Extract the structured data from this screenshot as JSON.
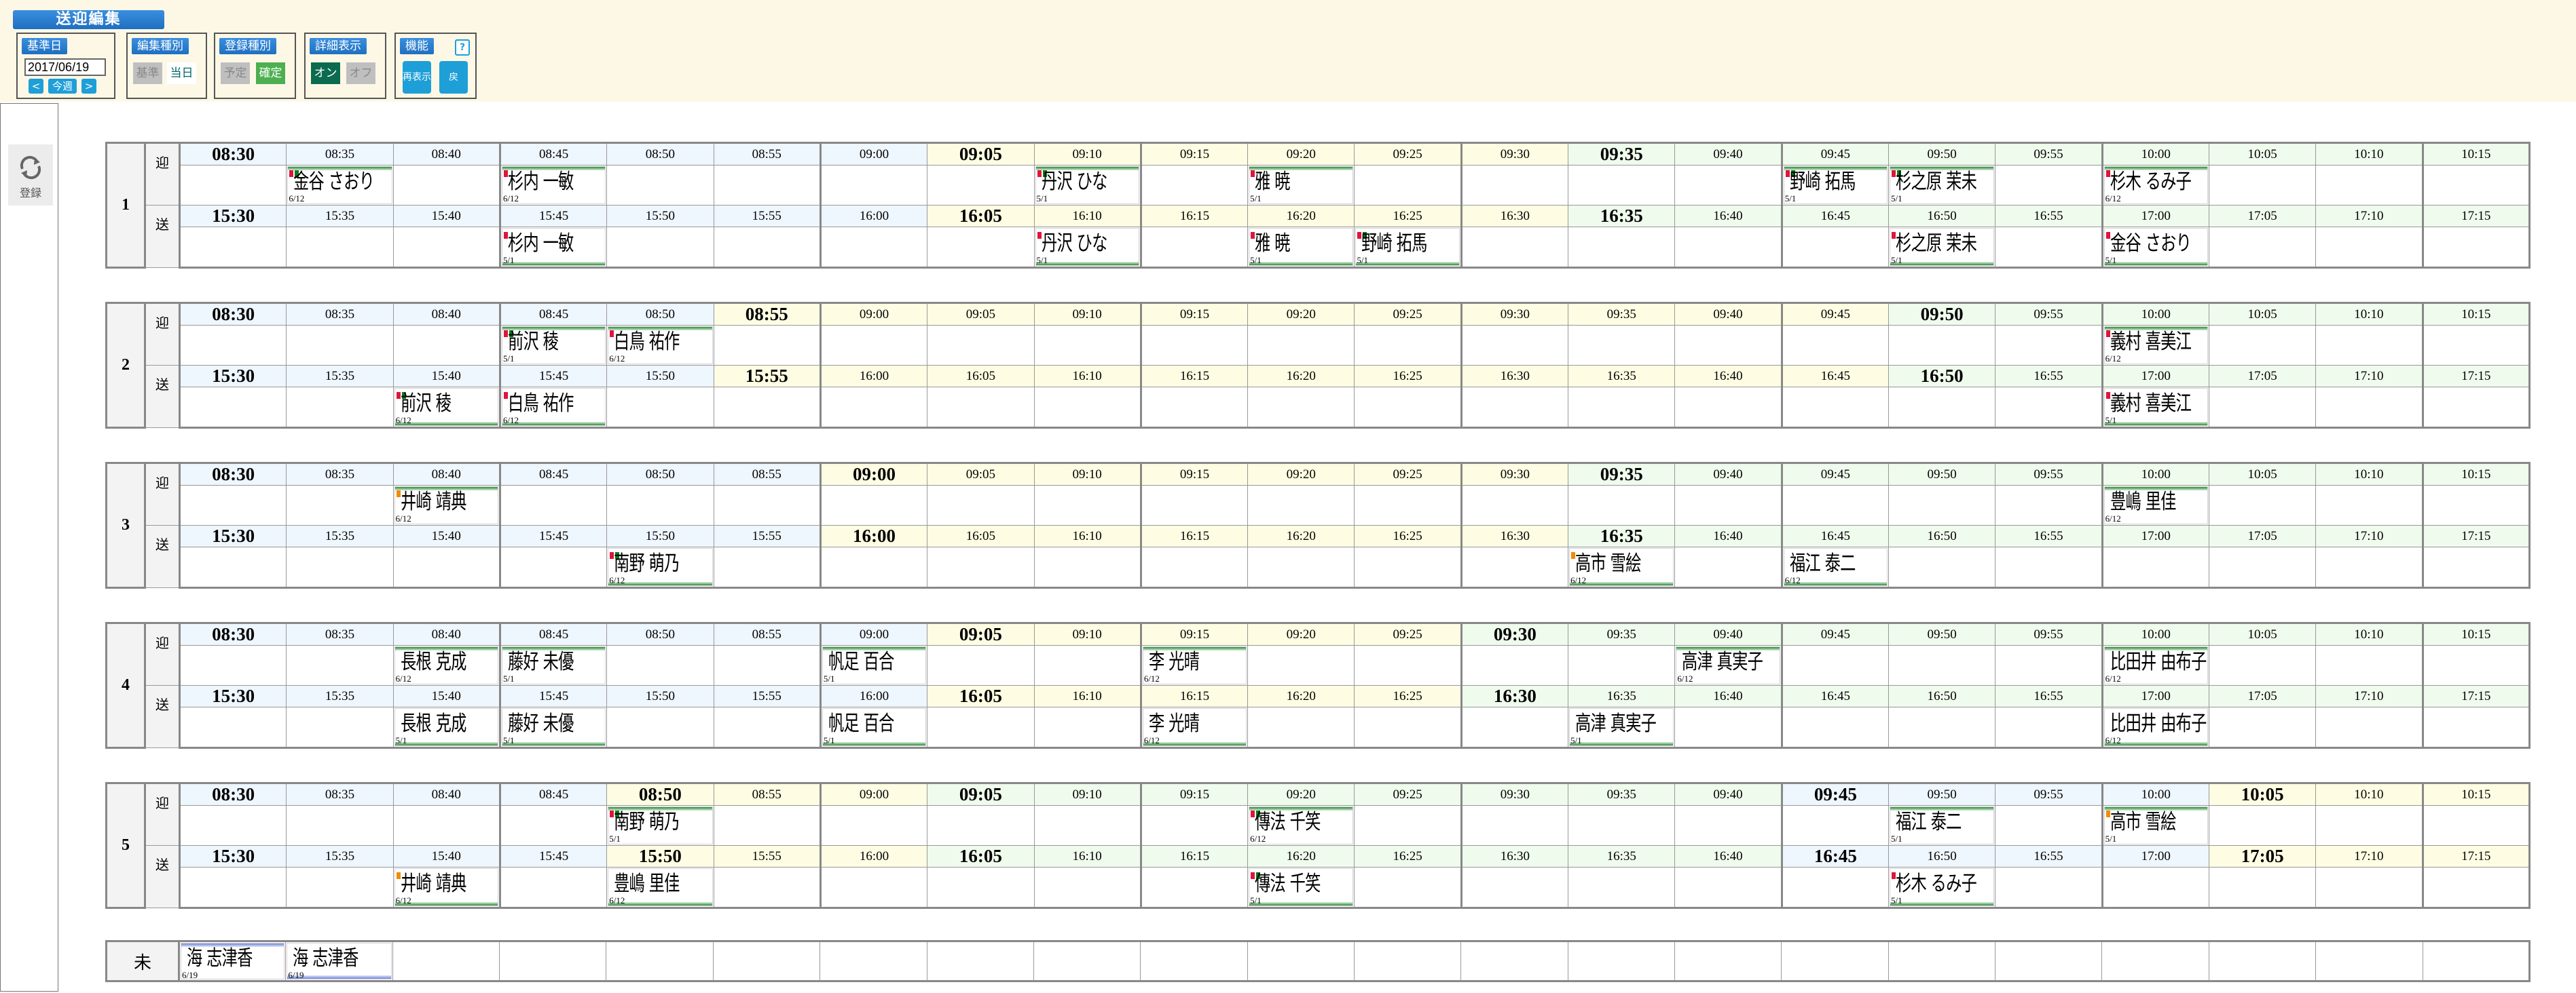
{
  "header": {
    "title": "送迎編集"
  },
  "toolbar": {
    "base_date": {
      "label": "基準日",
      "value": "2017/06/19",
      "prev": "<",
      "this_week": "今週",
      "next": ">"
    },
    "edit_type": {
      "label": "編集種別",
      "options": [
        "基準",
        "当日"
      ],
      "selected": "当日"
    },
    "register_type": {
      "label": "登録種別",
      "options": [
        "予定",
        "確定"
      ],
      "selected": "確定"
    },
    "detail_view": {
      "label": "詳細表示",
      "options": [
        "オン",
        "オフ"
      ],
      "selected": "オン"
    },
    "functions": {
      "label": "機能",
      "help": "?",
      "refresh": "再表示",
      "back": "戻"
    }
  },
  "sidebar": {
    "register_label": "登録",
    "register_icon": "refresh-icon"
  },
  "colors": {
    "segments": [
      "#eef6fe",
      "#fefde3",
      "#effbec"
    ],
    "markers": {
      "red": "#e0143c",
      "green": "#0a7a1a",
      "orange": "#f08c00"
    }
  },
  "row_labels": {
    "pickup": "迎",
    "dropoff": "送"
  },
  "groups": [
    {
      "number": "1",
      "pickup": {
        "times": [
          "08:30",
          "08:35",
          "08:40",
          "08:45",
          "08:50",
          "08:55",
          "09:00",
          "09:05",
          "09:10",
          "09:15",
          "09:20",
          "09:25",
          "09:30",
          "09:35",
          "09:40",
          "09:45",
          "09:50",
          "09:55",
          "10:00",
          "10:05",
          "10:10",
          "10:15"
        ],
        "bold": [
          "08:30",
          "09:05",
          "09:35"
        ],
        "cards": [
          {
            "time": "08:35",
            "name": "金谷 さおり",
            "date": "6/12",
            "markers": [
              "red",
              "green"
            ]
          },
          {
            "time": "08:45",
            "name": "杉内 一敏",
            "date": "6/12",
            "markers": [
              "red"
            ]
          },
          {
            "time": "09:10",
            "name": "丹沢 ひな",
            "date": "5/1",
            "markers": [
              "red",
              "green"
            ]
          },
          {
            "time": "09:20",
            "name": "雅 暁",
            "date": "5/1",
            "markers": [
              "red"
            ]
          },
          {
            "time": "09:45",
            "name": "野崎 拓馬",
            "date": "5/1",
            "markers": [
              "red",
              "green"
            ]
          },
          {
            "time": "09:50",
            "name": "杉之原 茉未",
            "date": "5/1",
            "markers": [
              "red",
              "green"
            ]
          },
          {
            "time": "10:00",
            "name": "杉木 るみ子",
            "date": "6/12",
            "markers": [
              "red"
            ]
          }
        ]
      },
      "dropoff": {
        "times": [
          "15:30",
          "15:35",
          "15:40",
          "15:45",
          "15:50",
          "15:55",
          "16:00",
          "16:05",
          "16:10",
          "16:15",
          "16:20",
          "16:25",
          "16:30",
          "16:35",
          "16:40",
          "16:45",
          "16:50",
          "16:55",
          "17:00",
          "17:05",
          "17:10",
          "17:15"
        ],
        "bold": [
          "15:30",
          "16:05",
          "16:35"
        ],
        "cards": [
          {
            "time": "15:45",
            "name": "杉内 一敏",
            "date": "5/1",
            "markers": [
              "red"
            ]
          },
          {
            "time": "16:10",
            "name": "丹沢 ひな",
            "date": "5/1",
            "markers": [
              "red"
            ]
          },
          {
            "time": "16:20",
            "name": "雅 暁",
            "date": "5/1",
            "markers": [
              "red"
            ]
          },
          {
            "time": "16:25",
            "name": "野崎 拓馬",
            "date": "5/1",
            "markers": [
              "red",
              "green"
            ]
          },
          {
            "time": "16:50",
            "name": "杉之原 茉未",
            "date": "5/1",
            "markers": [
              "red"
            ]
          },
          {
            "time": "17:00",
            "name": "金谷 さおり",
            "date": "5/1",
            "markers": [
              "red"
            ]
          }
        ]
      }
    },
    {
      "number": "2",
      "pickup": {
        "times": [
          "08:30",
          "08:35",
          "08:40",
          "08:45",
          "08:50",
          "08:55",
          "09:00",
          "09:05",
          "09:10",
          "09:15",
          "09:20",
          "09:25",
          "09:30",
          "09:35",
          "09:40",
          "09:45",
          "09:50",
          "09:55",
          "10:00",
          "10:05",
          "10:10",
          "10:15"
        ],
        "bold": [
          "08:30",
          "08:55",
          "09:50"
        ],
        "cards": [
          {
            "time": "08:45",
            "name": "前沢 稜",
            "date": "5/1",
            "markers": [
              "red",
              "green"
            ]
          },
          {
            "time": "08:50",
            "name": "白鳥 祐作",
            "date": "6/12",
            "markers": [
              "red"
            ]
          },
          {
            "time": "10:00",
            "name": "義村 喜美江",
            "date": "6/12",
            "markers": [
              "red"
            ]
          }
        ]
      },
      "dropoff": {
        "times": [
          "15:30",
          "15:35",
          "15:40",
          "15:45",
          "15:50",
          "15:55",
          "16:00",
          "16:05",
          "16:10",
          "16:15",
          "16:20",
          "16:25",
          "16:30",
          "16:35",
          "16:40",
          "16:45",
          "16:50",
          "16:55",
          "17:00",
          "17:05",
          "17:10",
          "17:15"
        ],
        "bold": [
          "15:30",
          "15:55",
          "16:50"
        ],
        "cards": [
          {
            "time": "15:40",
            "name": "前沢 稜",
            "date": "6/12",
            "markers": [
              "red",
              "green"
            ]
          },
          {
            "time": "15:45",
            "name": "白鳥 祐作",
            "date": "6/12",
            "markers": [
              "red"
            ]
          },
          {
            "time": "17:00",
            "name": "義村 喜美江",
            "date": "5/1",
            "markers": [
              "red"
            ]
          }
        ]
      }
    },
    {
      "number": "3",
      "pickup": {
        "times": [
          "08:30",
          "08:35",
          "08:40",
          "08:45",
          "08:50",
          "08:55",
          "09:00",
          "09:05",
          "09:10",
          "09:15",
          "09:20",
          "09:25",
          "09:30",
          "09:35",
          "09:40",
          "09:45",
          "09:50",
          "09:55",
          "10:00",
          "10:05",
          "10:10",
          "10:15"
        ],
        "bold": [
          "08:30",
          "09:00",
          "09:35"
        ],
        "cards": [
          {
            "time": "08:40",
            "name": "井崎 靖典",
            "date": "6/12",
            "markers": [
              "orange"
            ]
          },
          {
            "time": "10:00",
            "name": "豊嶋 里佳",
            "date": "6/12",
            "markers": []
          }
        ]
      },
      "dropoff": {
        "times": [
          "15:30",
          "15:35",
          "15:40",
          "15:45",
          "15:50",
          "15:55",
          "16:00",
          "16:05",
          "16:10",
          "16:15",
          "16:20",
          "16:25",
          "16:30",
          "16:35",
          "16:40",
          "16:45",
          "16:50",
          "16:55",
          "17:00",
          "17:05",
          "17:10",
          "17:15"
        ],
        "bold": [
          "15:30",
          "16:00",
          "16:35"
        ],
        "cards": [
          {
            "time": "15:50",
            "name": "南野 萌乃",
            "date": "6/12",
            "markers": [
              "red",
              "green"
            ]
          },
          {
            "time": "16:35",
            "name": "高市 雪絵",
            "date": "6/12",
            "markers": [
              "orange"
            ]
          },
          {
            "time": "16:45",
            "name": "福江 泰二",
            "date": "6/12",
            "markers": []
          }
        ]
      }
    },
    {
      "number": "4",
      "pickup": {
        "times": [
          "08:30",
          "08:35",
          "08:40",
          "08:45",
          "08:50",
          "08:55",
          "09:00",
          "09:05",
          "09:10",
          "09:15",
          "09:20",
          "09:25",
          "09:30",
          "09:35",
          "09:40",
          "09:45",
          "09:50",
          "09:55",
          "10:00",
          "10:05",
          "10:10",
          "10:15"
        ],
        "bold": [
          "08:30",
          "09:05",
          "09:30"
        ],
        "cards": [
          {
            "time": "08:40",
            "name": "長根 克成",
            "date": "6/12",
            "markers": []
          },
          {
            "time": "08:45",
            "name": "藤好 未優",
            "date": "5/1",
            "markers": []
          },
          {
            "time": "09:00",
            "name": "帆足 百合",
            "date": "5/1",
            "markers": []
          },
          {
            "time": "09:15",
            "name": "李 光晴",
            "date": "6/12",
            "markers": []
          },
          {
            "time": "09:40",
            "name": "高津 真実子",
            "date": "6/12",
            "markers": []
          },
          {
            "time": "10:00",
            "name": "比田井 由布子",
            "date": "6/12",
            "markers": []
          }
        ]
      },
      "dropoff": {
        "times": [
          "15:30",
          "15:35",
          "15:40",
          "15:45",
          "15:50",
          "15:55",
          "16:00",
          "16:05",
          "16:10",
          "16:15",
          "16:20",
          "16:25",
          "16:30",
          "16:35",
          "16:40",
          "16:45",
          "16:50",
          "16:55",
          "17:00",
          "17:05",
          "17:10",
          "17:15"
        ],
        "bold": [
          "15:30",
          "16:05",
          "16:30"
        ],
        "cards": [
          {
            "time": "15:40",
            "name": "長根 克成",
            "date": "5/1",
            "markers": []
          },
          {
            "time": "15:45",
            "name": "藤好 未優",
            "date": "5/1",
            "markers": []
          },
          {
            "time": "16:00",
            "name": "帆足 百合",
            "date": "5/1",
            "markers": []
          },
          {
            "time": "16:15",
            "name": "李 光晴",
            "date": "6/12",
            "markers": []
          },
          {
            "time": "16:35",
            "name": "高津 真実子",
            "date": "5/1",
            "markers": []
          },
          {
            "time": "17:00",
            "name": "比田井 由布子",
            "date": "6/12",
            "markers": []
          }
        ]
      }
    },
    {
      "number": "5",
      "pickup": {
        "times": [
          "08:30",
          "08:35",
          "08:40",
          "08:45",
          "08:50",
          "08:55",
          "09:00",
          "09:05",
          "09:10",
          "09:15",
          "09:20",
          "09:25",
          "09:30",
          "09:35",
          "09:40",
          "09:45",
          "09:50",
          "09:55",
          "10:00",
          "10:05",
          "10:10",
          "10:15"
        ],
        "bold": [
          "08:30",
          "08:50",
          "09:05",
          "09:45",
          "10:05"
        ],
        "cards": [
          {
            "time": "08:50",
            "name": "南野 萌乃",
            "date": "5/1",
            "markers": [
              "red",
              "green"
            ]
          },
          {
            "time": "09:20",
            "name": "傳法 千笑",
            "date": "6/12",
            "markers": [
              "red",
              "green"
            ]
          },
          {
            "time": "09:50",
            "name": "福江 泰二",
            "date": "5/1",
            "markers": []
          },
          {
            "time": "10:00",
            "name": "高市 雪絵",
            "date": "5/1",
            "markers": [
              "orange"
            ]
          }
        ]
      },
      "dropoff": {
        "times": [
          "15:30",
          "15:35",
          "15:40",
          "15:45",
          "15:50",
          "15:55",
          "16:00",
          "16:05",
          "16:10",
          "16:15",
          "16:20",
          "16:25",
          "16:30",
          "16:35",
          "16:40",
          "16:45",
          "16:50",
          "16:55",
          "17:00",
          "17:05",
          "17:10",
          "17:15"
        ],
        "bold": [
          "15:30",
          "15:50",
          "16:05",
          "16:45",
          "17:05"
        ],
        "cards": [
          {
            "time": "15:40",
            "name": "井崎 靖典",
            "date": "6/12",
            "markers": [
              "orange"
            ]
          },
          {
            "time": "15:50",
            "name": "豊嶋 里佳",
            "date": "6/12",
            "markers": []
          },
          {
            "time": "16:20",
            "name": "傳法 千笑",
            "date": "5/1",
            "markers": [
              "red",
              "green"
            ]
          },
          {
            "time": "16:50",
            "name": "杉木 るみ子",
            "date": "5/1",
            "markers": [
              "red"
            ]
          }
        ]
      }
    }
  ],
  "unassigned": {
    "label": "未",
    "cards": [
      {
        "name": "海 志津香",
        "date": "6/19",
        "bar": "top"
      },
      {
        "name": "海 志津香",
        "date": "6/19",
        "bar": "bottom"
      }
    ]
  }
}
